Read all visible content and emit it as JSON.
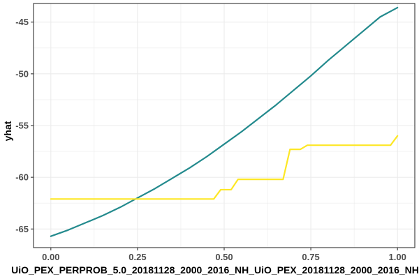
{
  "chart_data": {
    "type": "line",
    "title": "",
    "xlabel": "UiO_PEX_PERPROB_5.0_20181128_2000_2016_NH_UiO_PEX_20181128_2000_2016_NH",
    "ylabel": "yhat",
    "xlim": [
      -0.05,
      1.05
    ],
    "ylim": [
      -66.8,
      -43.2
    ],
    "x_ticks": [
      0.0,
      0.25,
      0.5,
      0.75,
      1.0
    ],
    "x_tick_labels": [
      "0.00",
      "0.25",
      "0.50",
      "0.75",
      "1.00"
    ],
    "y_ticks": [
      -65,
      -60,
      -55,
      -50,
      -45
    ],
    "y_tick_labels": [
      "-65",
      "-60",
      "-55",
      "-50",
      "-45"
    ],
    "grid": true,
    "legend": "none",
    "series": [
      {
        "color": "#238a8d",
        "x": [
          0.0,
          0.05,
          0.1,
          0.15,
          0.2,
          0.25,
          0.3,
          0.35,
          0.4,
          0.45,
          0.5,
          0.55,
          0.6,
          0.65,
          0.7,
          0.75,
          0.8,
          0.85,
          0.9,
          0.95,
          1.0
        ],
        "y": [
          -65.7,
          -65.1,
          -64.4,
          -63.7,
          -62.9,
          -62.0,
          -61.1,
          -60.1,
          -59.1,
          -58.0,
          -56.8,
          -55.6,
          -54.3,
          -53.0,
          -51.6,
          -50.2,
          -48.7,
          -47.3,
          -45.9,
          -44.5,
          -43.6
        ]
      },
      {
        "color": "#fde725",
        "x": [
          0.0,
          0.47,
          0.49,
          0.52,
          0.54,
          0.67,
          0.69,
          0.72,
          0.74,
          0.98,
          1.0
        ],
        "y": [
          -62.1,
          -62.1,
          -61.2,
          -61.2,
          -60.2,
          -60.2,
          -57.3,
          -57.3,
          -56.9,
          -56.9,
          -56.0
        ]
      }
    ]
  }
}
